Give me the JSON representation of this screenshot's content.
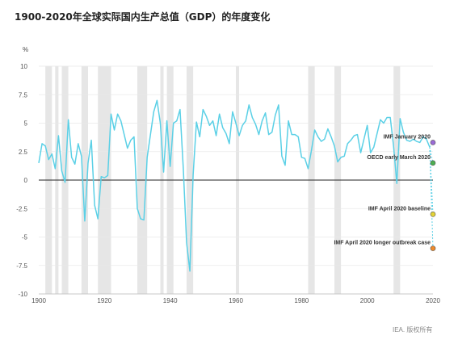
{
  "chart_data": {
    "type": "line",
    "title": "1900-2020年全球实际国内生产总值（GDP）的年度变化",
    "ylabel": "%",
    "xlim": [
      1900,
      2020
    ],
    "ylim": [
      -10,
      10
    ],
    "x_ticks": [
      1900,
      1920,
      1940,
      1960,
      1980,
      2000,
      2020
    ],
    "y_ticks": [
      10,
      7.5,
      5,
      2.5,
      0,
      -2.5,
      -5,
      -7.5,
      -10
    ],
    "y_tick_labels": [
      "10",
      "7.5",
      "5",
      "2.5",
      "0",
      "-2.5",
      "-5",
      "-7.5",
      "-10"
    ],
    "grid": "horizontal",
    "line_color": "#5bd0e6",
    "shade_color": "#e6e6e6",
    "shaded_periods": [
      [
        1902,
        1904
      ],
      [
        1905,
        1906
      ],
      [
        1907,
        1909
      ],
      [
        1913,
        1915
      ],
      [
        1918,
        1922
      ],
      [
        1930,
        1933
      ],
      [
        1937,
        1938
      ],
      [
        1939,
        1941
      ],
      [
        1945,
        1947
      ],
      [
        1960,
        1961
      ],
      [
        1982,
        1984
      ],
      [
        1990,
        1992
      ],
      [
        2008,
        2010
      ]
    ],
    "series": {
      "x": [
        1900,
        1901,
        1902,
        1903,
        1904,
        1905,
        1906,
        1907,
        1908,
        1909,
        1910,
        1911,
        1912,
        1913,
        1914,
        1915,
        1916,
        1917,
        1918,
        1919,
        1920,
        1921,
        1922,
        1923,
        1924,
        1925,
        1926,
        1927,
        1928,
        1929,
        1930,
        1931,
        1932,
        1933,
        1934,
        1935,
        1936,
        1937,
        1938,
        1939,
        1940,
        1941,
        1942,
        1943,
        1944,
        1945,
        1946,
        1947,
        1948,
        1949,
        1950,
        1951,
        1952,
        1953,
        1954,
        1955,
        1956,
        1957,
        1958,
        1959,
        1960,
        1961,
        1962,
        1963,
        1964,
        1965,
        1966,
        1967,
        1968,
        1969,
        1970,
        1971,
        1972,
        1973,
        1974,
        1975,
        1976,
        1977,
        1978,
        1979,
        1980,
        1981,
        1982,
        1983,
        1984,
        1985,
        1986,
        1987,
        1988,
        1989,
        1990,
        1991,
        1992,
        1993,
        1994,
        1995,
        1996,
        1997,
        1998,
        1999,
        2000,
        2001,
        2002,
        2003,
        2004,
        2005,
        2006,
        2007,
        2008,
        2009,
        2010,
        2011,
        2012,
        2013,
        2014,
        2015,
        2016,
        2017,
        2018,
        2019
      ],
      "y": [
        1.5,
        3.2,
        3.0,
        1.8,
        2.3,
        1.0,
        3.9,
        0.8,
        -0.2,
        5.3,
        2.0,
        1.4,
        3.2,
        2.1,
        -3.6,
        1.5,
        3.5,
        -2.2,
        -3.4,
        0.3,
        0.2,
        0.4,
        5.8,
        4.4,
        5.8,
        5.2,
        4.0,
        2.8,
        3.5,
        3.8,
        -2.5,
        -3.4,
        -3.5,
        2.0,
        4.0,
        6.0,
        7.0,
        5.0,
        0.7,
        5.2,
        1.2,
        5.0,
        5.2,
        6.2,
        1.0,
        -5.5,
        -8.0,
        0.5,
        5.1,
        3.8,
        6.2,
        5.6,
        4.8,
        5.2,
        3.9,
        5.8,
        4.6,
        4.1,
        3.2,
        6.0,
        5.0,
        3.9,
        4.8,
        5.2,
        6.6,
        5.5,
        4.9,
        4.0,
        5.2,
        5.9,
        4.0,
        4.2,
        5.7,
        6.6,
        2.1,
        1.3,
        5.2,
        4.0,
        4.0,
        3.8,
        2.0,
        1.9,
        1.0,
        2.6,
        4.4,
        3.8,
        3.4,
        3.6,
        4.5,
        3.8,
        3.0,
        1.6,
        2.0,
        2.1,
        3.2,
        3.5,
        3.9,
        4.0,
        2.4,
        3.6,
        4.8,
        2.4,
        2.9,
        4.1,
        5.3,
        5.0,
        5.5,
        5.5,
        3.0,
        -0.3,
        5.4,
        4.2,
        3.5,
        3.4,
        3.6,
        3.4,
        3.3,
        3.8,
        3.6,
        2.9
      ]
    },
    "projections": [
      {
        "label": "IMF January 2020",
        "value": 3.3,
        "color": "#9a6bd6"
      },
      {
        "label": "OECD early March 2020",
        "value": 1.5,
        "color": "#4caf50"
      },
      {
        "label": "IMF April 2020 baseline",
        "value": -3.0,
        "color": "#e3d335"
      },
      {
        "label": "IMF April 2020 longer outbreak case",
        "value": -6.0,
        "color": "#ef8a2a"
      }
    ],
    "projection_year": 2020
  },
  "source": "IEA. 版权所有"
}
